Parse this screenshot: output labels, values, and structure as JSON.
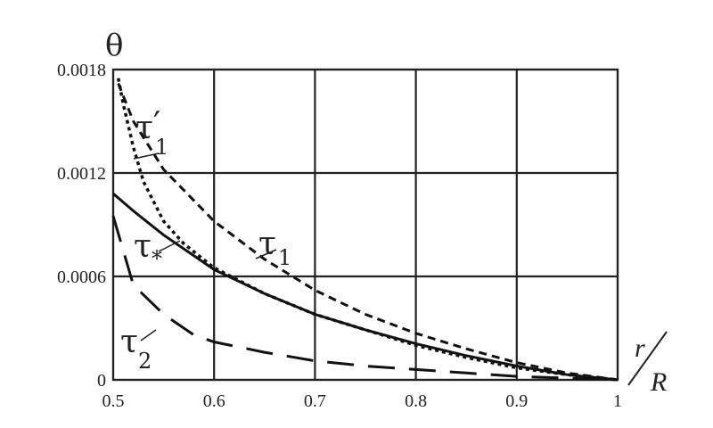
{
  "chart_data": {
    "type": "line",
    "xlabel_top": "r",
    "xlabel_bottom": "R",
    "ylabel": "θ",
    "xlim": [
      0.5,
      1.0
    ],
    "ylim": [
      0,
      0.0018
    ],
    "x_ticks": [
      "0.5",
      "0.6",
      "0.7",
      "0.8",
      "0.9",
      "1"
    ],
    "y_ticks": [
      "0",
      "0.0006",
      "0.0012",
      "0.0018"
    ],
    "grid": true,
    "series": [
      {
        "name": "τ1",
        "label_main": "τ",
        "label_sub": "1",
        "label_prime": "",
        "style": "dashed",
        "x": [
          0.505,
          0.52,
          0.55,
          0.6,
          0.65,
          0.7,
          0.75,
          0.8,
          0.85,
          0.9,
          0.95,
          1.0
        ],
        "y": [
          0.00172,
          0.0015,
          0.00122,
          0.00092,
          0.0007,
          0.00052,
          0.00038,
          0.00027,
          0.00018,
          0.0001,
          4e-05,
          0.0
        ]
      },
      {
        "name": "τ′1",
        "label_main": "τ",
        "label_sub": "1",
        "label_prime": "′",
        "style": "dotted",
        "x": [
          0.505,
          0.51,
          0.52,
          0.53,
          0.55,
          0.57,
          0.6,
          0.65,
          0.7,
          0.75,
          0.8,
          0.85,
          0.9,
          0.95,
          1.0
        ],
        "y": [
          0.00175,
          0.0016,
          0.00135,
          0.00115,
          0.00092,
          0.00079,
          0.00065,
          0.0005,
          0.00038,
          0.00029,
          0.0002,
          0.00013,
          7e-05,
          3e-05,
          0.0
        ]
      },
      {
        "name": "τ*",
        "label_main": "τ",
        "label_sub": "*",
        "label_prime": "",
        "style": "solid",
        "x": [
          0.5,
          0.52,
          0.55,
          0.6,
          0.65,
          0.7,
          0.75,
          0.8,
          0.85,
          0.9,
          0.95,
          1.0
        ],
        "y": [
          0.00108,
          0.00098,
          0.00084,
          0.00064,
          0.0005,
          0.00038,
          0.00029,
          0.00021,
          0.00014,
          8e-05,
          3e-05,
          0.0
        ]
      },
      {
        "name": "τ2",
        "label_main": "τ",
        "label_sub": "2",
        "label_prime": "",
        "style": "longdash",
        "x": [
          0.5,
          0.51,
          0.52,
          0.55,
          0.58,
          0.6,
          0.65,
          0.7,
          0.75,
          0.8,
          0.85,
          0.9,
          0.95,
          1.0
        ],
        "y": [
          0.00095,
          0.00075,
          0.00055,
          0.00038,
          0.00026,
          0.00022,
          0.00016,
          0.00011,
          8e-05,
          6e-05,
          4e-05,
          2e-05,
          1e-05,
          0.0
        ]
      }
    ]
  }
}
